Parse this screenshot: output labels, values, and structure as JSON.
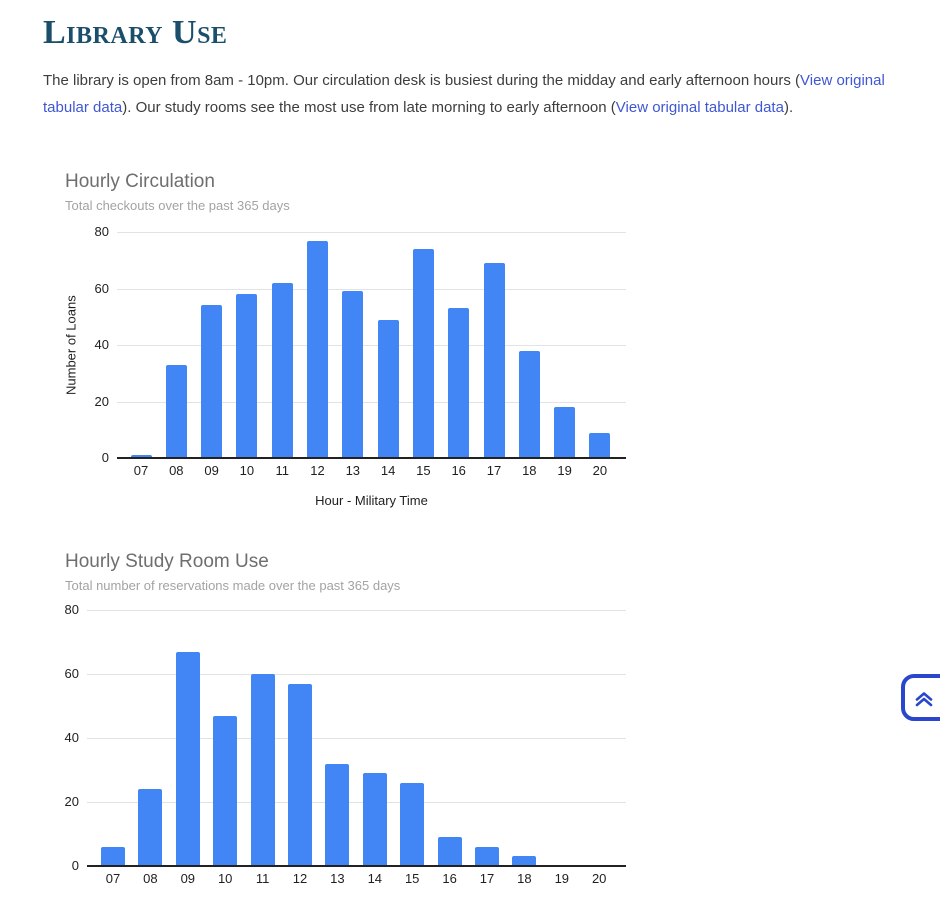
{
  "heading": {
    "title": "Library Use"
  },
  "intro": {
    "part1": "The library is open from 8am - 10pm. Our circulation desk is busiest during the midday and early afternoon hours (",
    "link1": "View original tabular data",
    "part2": "). Our study rooms see the most use from late morning to early afternoon (",
    "link2": "View original tabular data",
    "part3": ")."
  },
  "colors": {
    "heading": "#1b4e6b",
    "link": "#3f57d2",
    "bar": "#4285f4",
    "gridline": "#e3e3e3",
    "button_border": "#2946cc"
  },
  "scroll_top": {
    "icon": "double-chevron-up"
  },
  "chart_data": [
    {
      "type": "bar",
      "title": "Hourly Circulation",
      "subtitle": "Total checkouts over the past 365 days",
      "categories": [
        "07",
        "08",
        "09",
        "10",
        "11",
        "12",
        "13",
        "14",
        "15",
        "16",
        "17",
        "18",
        "19",
        "20"
      ],
      "values": [
        1,
        33,
        54,
        58,
        62,
        77,
        59,
        49,
        74,
        53,
        69,
        38,
        18,
        9
      ],
      "xlabel": "Hour - Military Time",
      "ylabel": "Number of Loans",
      "ylim": [
        0,
        80
      ],
      "yticks": [
        0,
        20,
        40,
        60,
        80
      ],
      "grid": true,
      "legend": "none",
      "bar_color": "#4285f4"
    },
    {
      "type": "bar",
      "title": "Hourly Study Room Use",
      "subtitle": "Total number of reservations made over the past 365 days",
      "categories": [
        "07",
        "08",
        "09",
        "10",
        "11",
        "12",
        "13",
        "14",
        "15",
        "16",
        "17",
        "18",
        "19",
        "20"
      ],
      "values": [
        6,
        24,
        67,
        47,
        60,
        57,
        32,
        29,
        26,
        9,
        6,
        3,
        0,
        0
      ],
      "xlabel": "",
      "ylabel": "",
      "ylim": [
        0,
        80
      ],
      "yticks": [
        0,
        20,
        40,
        60,
        80
      ],
      "grid": true,
      "legend": "none",
      "bar_color": "#4285f4"
    }
  ]
}
